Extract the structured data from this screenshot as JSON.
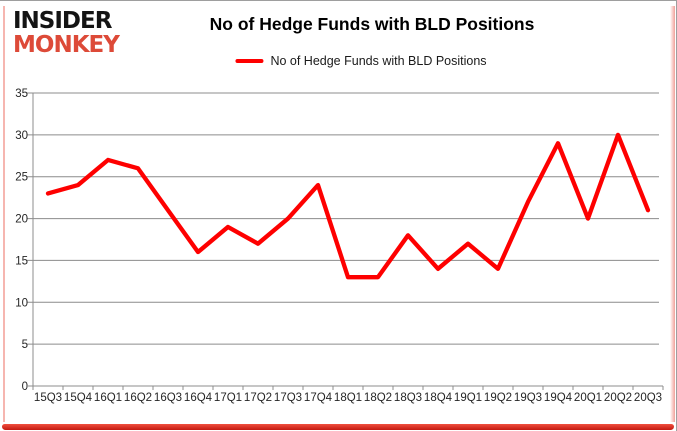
{
  "logo": {
    "line1": "INSIDER",
    "line2": "MONKEY"
  },
  "header": {
    "title": "No of Hedge Funds with BLD Positions"
  },
  "legend": {
    "label": "No of Hedge Funds with BLD Positions"
  },
  "colors": {
    "series": "#fe0000",
    "grid": "#8c8c8c",
    "axis_line": "#8c8c8c",
    "axis_text": "#262626",
    "logo_black": "#141414",
    "logo_red": "#dd4a38",
    "frame_pink": "#f6b6b0",
    "frame_red": "#d6281c"
  },
  "chart_data": {
    "type": "line",
    "title": "No of Hedge Funds with BLD Positions",
    "categories": [
      "15Q3",
      "15Q4",
      "16Q1",
      "16Q2",
      "16Q3",
      "16Q4",
      "17Q1",
      "17Q2",
      "17Q3",
      "17Q4",
      "18Q1",
      "18Q2",
      "18Q3",
      "18Q4",
      "19Q1",
      "19Q2",
      "19Q3",
      "19Q4",
      "20Q1",
      "20Q2",
      "20Q3"
    ],
    "series": [
      {
        "name": "No of Hedge Funds with BLD Positions",
        "values": [
          23,
          24,
          27,
          26,
          21,
          16,
          19,
          17,
          20,
          24,
          13,
          13,
          18,
          14,
          17,
          14,
          22,
          29,
          20,
          30,
          21
        ]
      }
    ],
    "xlabel": "",
    "ylabel": "",
    "ylim": [
      0,
      35
    ],
    "yticks": [
      0,
      5,
      10,
      15,
      20,
      25,
      30,
      35
    ],
    "grid": "horizontal",
    "legend_position": "top"
  }
}
